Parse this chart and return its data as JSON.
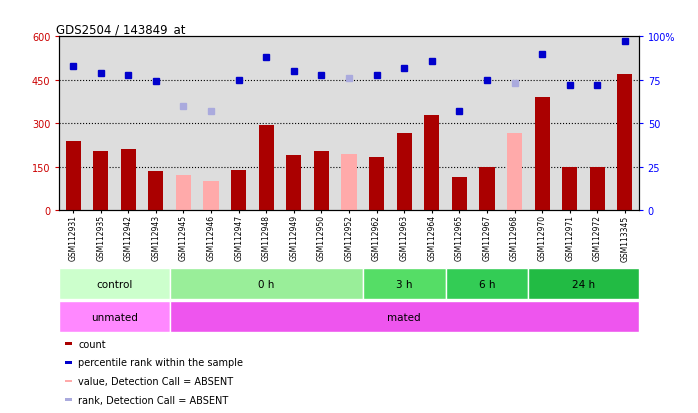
{
  "title": "GDS2504 / 143849_at",
  "samples": [
    "GSM112931",
    "GSM112935",
    "GSM112942",
    "GSM112943",
    "GSM112945",
    "GSM112946",
    "GSM112947",
    "GSM112948",
    "GSM112949",
    "GSM112950",
    "GSM112952",
    "GSM112962",
    "GSM112963",
    "GSM112964",
    "GSM112965",
    "GSM112967",
    "GSM112968",
    "GSM112970",
    "GSM112971",
    "GSM112972",
    "GSM113345"
  ],
  "count_values": [
    240,
    205,
    210,
    135,
    null,
    null,
    140,
    295,
    190,
    205,
    null,
    185,
    265,
    330,
    115,
    150,
    null,
    390,
    150,
    150,
    470
  ],
  "count_absent": [
    null,
    null,
    null,
    null,
    120,
    100,
    null,
    null,
    null,
    null,
    195,
    null,
    null,
    null,
    null,
    null,
    265,
    null,
    null,
    null,
    null
  ],
  "rank_values": [
    83,
    79,
    78,
    74,
    null,
    null,
    75,
    88,
    80,
    78,
    null,
    78,
    82,
    86,
    57,
    75,
    null,
    90,
    72,
    72,
    97
  ],
  "rank_absent": [
    null,
    null,
    null,
    null,
    60,
    57,
    null,
    null,
    null,
    null,
    76,
    null,
    null,
    null,
    null,
    null,
    73,
    null,
    null,
    null,
    null
  ],
  "ylim_left": [
    0,
    600
  ],
  "ylim_right": [
    0,
    100
  ],
  "yticks_left": [
    0,
    150,
    300,
    450,
    600
  ],
  "yticks_right": [
    0,
    25,
    50,
    75,
    100
  ],
  "ytick_labels_right": [
    "0",
    "25",
    "50",
    "75",
    "100%"
  ],
  "bar_color_present": "#aa0000",
  "bar_color_absent": "#ffaaaa",
  "dot_color_present": "#0000cc",
  "dot_color_absent": "#aaaadd",
  "time_groups": [
    {
      "label": "control",
      "start": 0,
      "end": 4,
      "color": "#ccffcc"
    },
    {
      "label": "0 h",
      "start": 4,
      "end": 11,
      "color": "#99ee99"
    },
    {
      "label": "3 h",
      "start": 11,
      "end": 14,
      "color": "#55dd66"
    },
    {
      "label": "6 h",
      "start": 14,
      "end": 17,
      "color": "#33cc55"
    },
    {
      "label": "24 h",
      "start": 17,
      "end": 21,
      "color": "#22bb44"
    }
  ],
  "protocol_groups": [
    {
      "label": "unmated",
      "start": 0,
      "end": 4,
      "color": "#ff88ff"
    },
    {
      "label": "mated",
      "start": 4,
      "end": 21,
      "color": "#ee55ee"
    }
  ],
  "hline_values": [
    150,
    300,
    450
  ],
  "bg_color": "#dddddd",
  "legend_items": [
    {
      "label": "count",
      "color": "#aa0000"
    },
    {
      "label": "percentile rank within the sample",
      "color": "#0000cc"
    },
    {
      "label": "value, Detection Call = ABSENT",
      "color": "#ffaaaa"
    },
    {
      "label": "rank, Detection Call = ABSENT",
      "color": "#aaaadd"
    }
  ]
}
